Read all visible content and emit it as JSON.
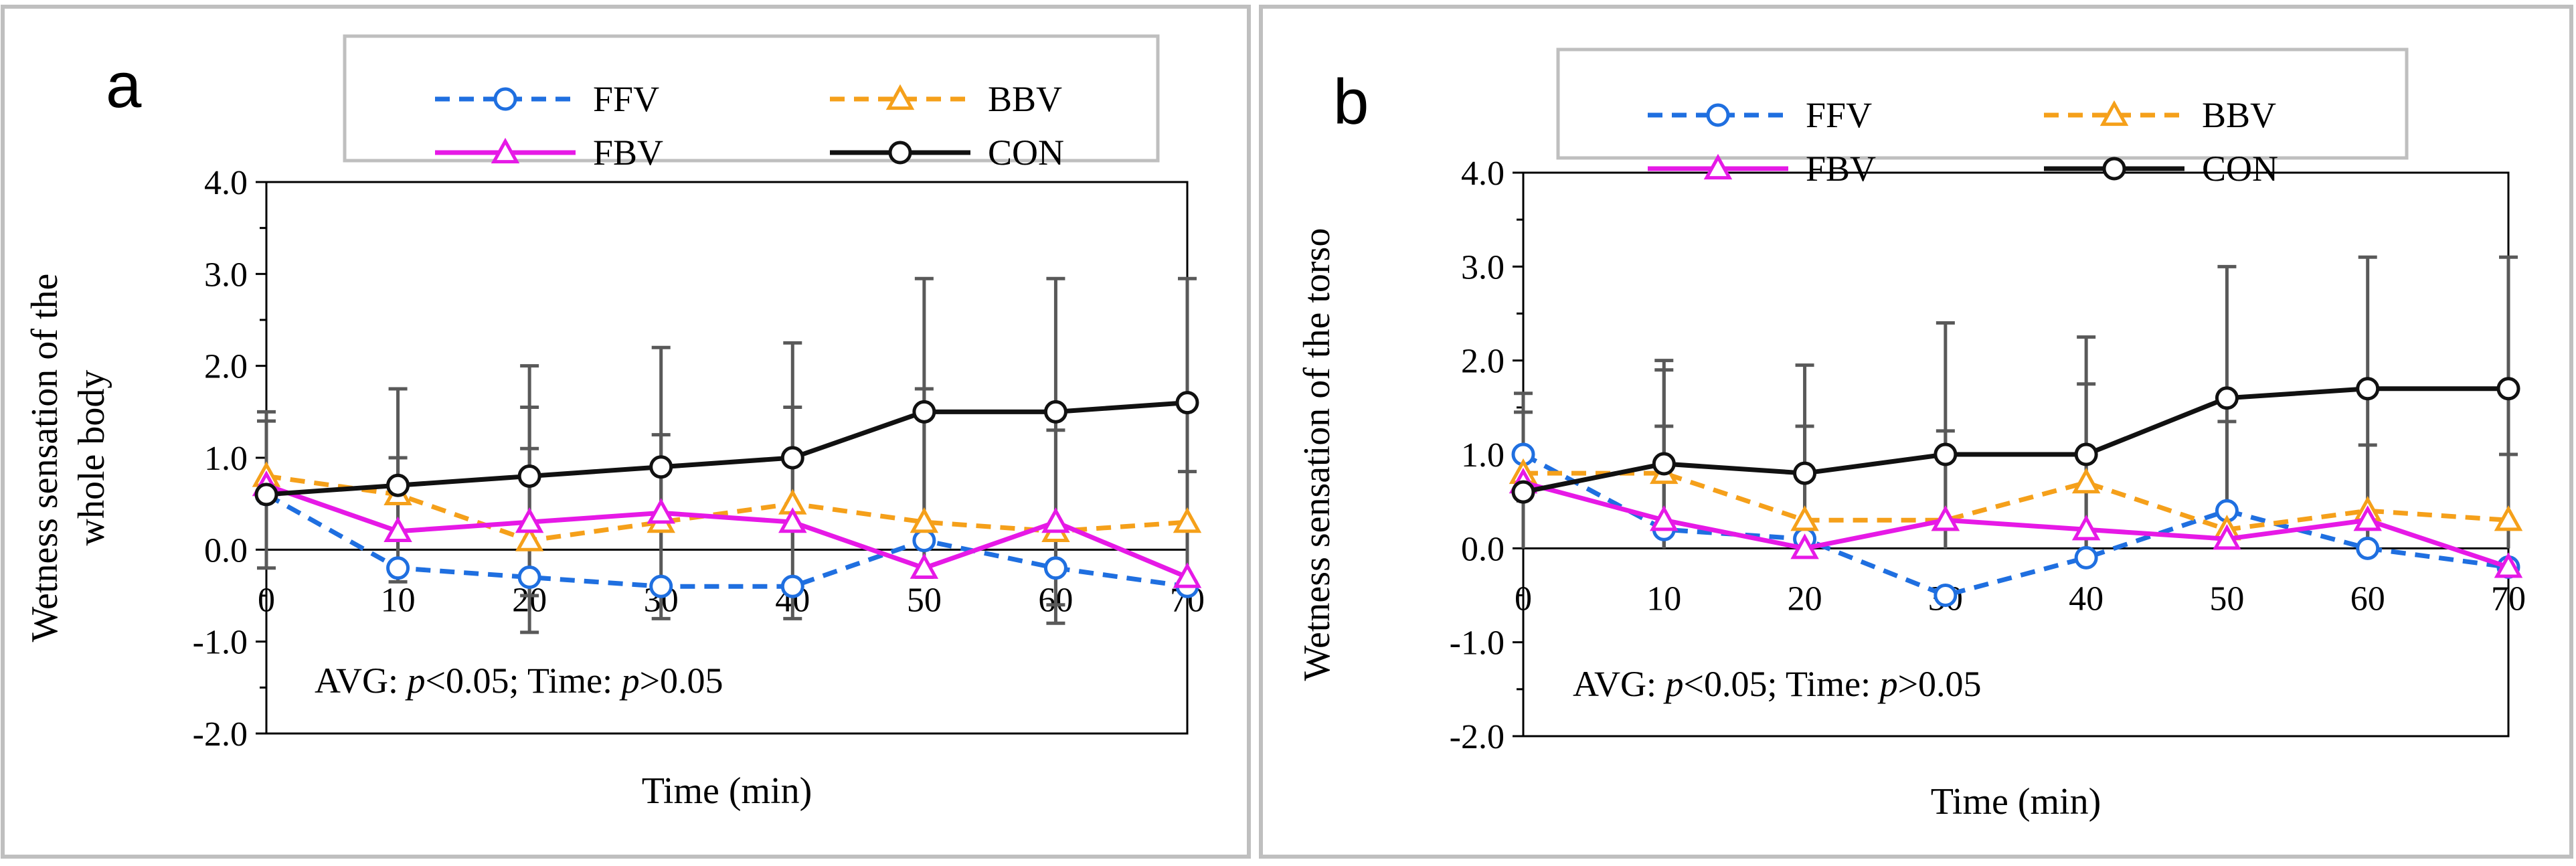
{
  "figure": {
    "colors": {
      "FFV": "#1f6fe0",
      "BBV": "#f5a01a",
      "FBV": "#e619e6",
      "CON": "#111111",
      "error_bar": "#595959",
      "frame": "#bfbfbf"
    }
  },
  "chart_data": [
    {
      "type": "line",
      "panel_label": "a",
      "xlabel": "Time (min)",
      "ylabel_lines": [
        "Wetness sensation of the",
        "whole body"
      ],
      "x": [
        0,
        10,
        20,
        30,
        40,
        50,
        60,
        70
      ],
      "xlim": [
        0,
        70
      ],
      "ylim": [
        -2.0,
        4.0
      ],
      "yticks": [
        "4.0",
        "3.0",
        "2.0",
        "1.0",
        "0.0",
        "-1.0",
        "-2.0"
      ],
      "xticks": [
        "0",
        "10",
        "20",
        "30",
        "40",
        "50",
        "60",
        "70"
      ],
      "annotation": {
        "prefix1": "AVG: ",
        "var1": "p",
        "rest1": "<0.05; Time: ",
        "var2": "p",
        "rest2": ">0.05"
      },
      "legend": [
        "FFV",
        "BBV",
        "FBV",
        "CON"
      ],
      "series": [
        {
          "name": "FFV",
          "style": "dashed",
          "marker": "circle",
          "values": [
            0.6,
            -0.2,
            -0.3,
            -0.4,
            -0.4,
            0.1,
            -0.2,
            -0.4
          ]
        },
        {
          "name": "BBV",
          "style": "dashed",
          "marker": "triangle",
          "values": [
            0.8,
            0.6,
            0.1,
            0.3,
            0.5,
            0.3,
            0.2,
            0.3
          ]
        },
        {
          "name": "FBV",
          "style": "solid",
          "marker": "triangle",
          "values": [
            0.7,
            0.2,
            0.3,
            0.4,
            0.3,
            -0.2,
            0.3,
            -0.3
          ]
        },
        {
          "name": "CON",
          "style": "solid",
          "marker": "circle",
          "values": [
            0.6,
            0.7,
            0.8,
            0.9,
            1.0,
            1.5,
            1.5,
            1.6
          ]
        }
      ],
      "error_bars": [
        {
          "x": 0,
          "top": 1.5,
          "bottom": -0.2
        },
        {
          "x": 0,
          "top": 1.4,
          "bottom": 0.0
        },
        {
          "x": 10,
          "top": 1.75,
          "bottom": -0.35
        },
        {
          "x": 10,
          "top": 1.0,
          "bottom": 0.0
        },
        {
          "x": 20,
          "top": 2.0,
          "bottom": -0.9
        },
        {
          "x": 20,
          "top": 1.55,
          "bottom": -0.5
        },
        {
          "x": 20,
          "top": 1.1,
          "bottom": 0.0
        },
        {
          "x": 30,
          "top": 2.2,
          "bottom": -0.75
        },
        {
          "x": 30,
          "top": 1.25,
          "bottom": 0.0
        },
        {
          "x": 40,
          "top": 2.25,
          "bottom": -0.75
        },
        {
          "x": 40,
          "top": 1.55,
          "bottom": 0.0
        },
        {
          "x": 50,
          "top": 2.95,
          "bottom": 0.0
        },
        {
          "x": 50,
          "top": 1.75,
          "bottom": -0.3
        },
        {
          "x": 60,
          "top": 2.95,
          "bottom": -0.8
        },
        {
          "x": 60,
          "top": 1.3,
          "bottom": -0.6
        },
        {
          "x": 70,
          "top": 2.95,
          "bottom": 0.0
        },
        {
          "x": 70,
          "top": 0.85,
          "bottom": -0.4
        }
      ]
    },
    {
      "type": "line",
      "panel_label": "b",
      "xlabel": "Time (min)",
      "ylabel_lines": [
        "Wetness sensation of the torso"
      ],
      "x": [
        0,
        10,
        20,
        30,
        40,
        50,
        60,
        70
      ],
      "xlim": [
        0,
        70
      ],
      "ylim": [
        -2.0,
        4.0
      ],
      "yticks": [
        "4.0",
        "3.0",
        "2.0",
        "1.0",
        "0.0",
        "-1.0",
        "-2.0"
      ],
      "xticks": [
        "0",
        "10",
        "20",
        "30",
        "40",
        "50",
        "60",
        "70"
      ],
      "annotation": {
        "prefix1": "AVG: ",
        "var1": "p",
        "rest1": "<0.05; Time: ",
        "var2": "p",
        "rest2": ">0.05"
      },
      "legend": [
        "FFV",
        "BBV",
        "FBV",
        "CON"
      ],
      "series": [
        {
          "name": "FFV",
          "style": "dashed",
          "marker": "circle",
          "values": [
            1.0,
            0.2,
            0.1,
            -0.5,
            -0.1,
            0.4,
            0.0,
            -0.2
          ]
        },
        {
          "name": "BBV",
          "style": "dashed",
          "marker": "triangle",
          "values": [
            0.8,
            0.8,
            0.3,
            0.3,
            0.7,
            0.2,
            0.4,
            0.3
          ]
        },
        {
          "name": "FBV",
          "style": "solid",
          "marker": "triangle",
          "values": [
            0.7,
            0.3,
            0.0,
            0.3,
            0.2,
            0.1,
            0.3,
            -0.2
          ]
        },
        {
          "name": "CON",
          "style": "solid",
          "marker": "circle",
          "values": [
            0.6,
            0.9,
            0.8,
            1.0,
            1.0,
            1.6,
            1.7,
            1.7
          ]
        }
      ],
      "error_bars": [
        {
          "x": 0,
          "top": 1.65,
          "bottom": 0.0
        },
        {
          "x": 0,
          "top": 1.45,
          "bottom": 0.0
        },
        {
          "x": 10,
          "top": 2.0,
          "bottom": 0.0
        },
        {
          "x": 10,
          "top": 1.9,
          "bottom": 0.0
        },
        {
          "x": 10,
          "top": 1.3,
          "bottom": 0.0
        },
        {
          "x": 20,
          "top": 1.95,
          "bottom": 0.0
        },
        {
          "x": 20,
          "top": 1.3,
          "bottom": 0.0
        },
        {
          "x": 30,
          "top": 2.4,
          "bottom": 0.0
        },
        {
          "x": 30,
          "top": 1.25,
          "bottom": 0.0
        },
        {
          "x": 40,
          "top": 2.25,
          "bottom": 0.0
        },
        {
          "x": 40,
          "top": 1.75,
          "bottom": 0.0
        },
        {
          "x": 50,
          "top": 3.0,
          "bottom": 0.0
        },
        {
          "x": 50,
          "top": 1.35,
          "bottom": 0.0
        },
        {
          "x": 60,
          "top": 3.1,
          "bottom": 0.0
        },
        {
          "x": 60,
          "top": 1.1,
          "bottom": 0.0
        },
        {
          "x": 70,
          "top": 3.1,
          "bottom": 0.0
        },
        {
          "x": 70,
          "top": 1.0,
          "bottom": 0.0
        }
      ]
    }
  ]
}
